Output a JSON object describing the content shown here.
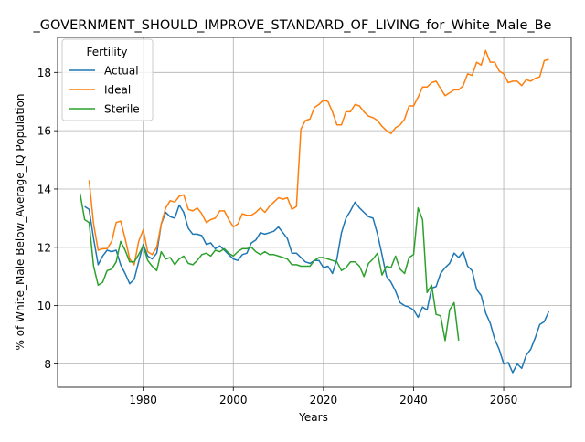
{
  "chart_data": {
    "type": "line",
    "title": "_GOVERNMENT_SHOULD_IMPROVE_STANDARD_OF_LIVING_for_White_Male_Be",
    "xlabel": "Years",
    "ylabel": "% of White_Male Below_Average_IQ Population",
    "xlim": [
      1961,
      2075
    ],
    "ylim": [
      7.2,
      19.2
    ],
    "x_ticks": [
      1980,
      2000,
      2020,
      2040,
      2060
    ],
    "y_ticks": [
      8,
      10,
      12,
      14,
      16,
      18
    ],
    "grid": true,
    "legend_title": "Fertility",
    "legend_position": "top-left",
    "series": [
      {
        "name": "Actual",
        "color": "#1f77b4",
        "points": [
          [
            1967,
            13.4
          ],
          [
            1968,
            13.3
          ],
          [
            1969,
            12.3
          ],
          [
            1970,
            11.4
          ],
          [
            1971,
            11.7
          ],
          [
            1972,
            11.9
          ],
          [
            1973,
            11.85
          ],
          [
            1974,
            11.9
          ],
          [
            1975,
            11.4
          ],
          [
            1976,
            11.1
          ],
          [
            1977,
            10.75
          ],
          [
            1978,
            10.9
          ],
          [
            1979,
            11.5
          ],
          [
            1980,
            12.1
          ],
          [
            1981,
            11.7
          ],
          [
            1982,
            11.6
          ],
          [
            1983,
            11.8
          ],
          [
            1984,
            12.8
          ],
          [
            1985,
            13.2
          ],
          [
            1986,
            13.05
          ],
          [
            1987,
            13.0
          ],
          [
            1988,
            13.45
          ],
          [
            1989,
            13.2
          ],
          [
            1990,
            12.65
          ],
          [
            1991,
            12.45
          ],
          [
            1992,
            12.45
          ],
          [
            1993,
            12.4
          ],
          [
            1994,
            12.1
          ],
          [
            1995,
            12.15
          ],
          [
            1996,
            11.95
          ],
          [
            1997,
            12.05
          ],
          [
            1998,
            11.9
          ],
          [
            1999,
            11.75
          ],
          [
            2000,
            11.6
          ],
          [
            2001,
            11.55
          ],
          [
            2002,
            11.75
          ],
          [
            2003,
            11.8
          ],
          [
            2004,
            12.15
          ],
          [
            2005,
            12.25
          ],
          [
            2006,
            12.5
          ],
          [
            2007,
            12.45
          ],
          [
            2008,
            12.5
          ],
          [
            2009,
            12.55
          ],
          [
            2010,
            12.7
          ],
          [
            2011,
            12.5
          ],
          [
            2012,
            12.3
          ],
          [
            2013,
            11.8
          ],
          [
            2014,
            11.8
          ],
          [
            2015,
            11.65
          ],
          [
            2016,
            11.5
          ],
          [
            2017,
            11.45
          ],
          [
            2018,
            11.55
          ],
          [
            2019,
            11.55
          ],
          [
            2020,
            11.3
          ],
          [
            2021,
            11.35
          ],
          [
            2022,
            11.1
          ],
          [
            2023,
            11.6
          ],
          [
            2024,
            12.5
          ],
          [
            2025,
            13.0
          ],
          [
            2026,
            13.25
          ],
          [
            2027,
            13.55
          ],
          [
            2028,
            13.35
          ],
          [
            2029,
            13.2
          ],
          [
            2030,
            13.05
          ],
          [
            2031,
            13.0
          ],
          [
            2032,
            12.45
          ],
          [
            2033,
            11.75
          ],
          [
            2034,
            11.0
          ],
          [
            2035,
            10.8
          ],
          [
            2036,
            10.5
          ],
          [
            2037,
            10.1
          ],
          [
            2038,
            10.0
          ],
          [
            2039,
            9.95
          ],
          [
            2040,
            9.85
          ],
          [
            2041,
            9.6
          ],
          [
            2042,
            9.95
          ],
          [
            2043,
            9.85
          ],
          [
            2044,
            10.6
          ],
          [
            2045,
            10.65
          ],
          [
            2046,
            11.1
          ],
          [
            2047,
            11.3
          ],
          [
            2048,
            11.45
          ],
          [
            2049,
            11.8
          ],
          [
            2050,
            11.65
          ],
          [
            2051,
            11.85
          ],
          [
            2052,
            11.35
          ],
          [
            2053,
            11.2
          ],
          [
            2054,
            10.55
          ],
          [
            2055,
            10.35
          ],
          [
            2056,
            9.75
          ],
          [
            2057,
            9.4
          ],
          [
            2058,
            8.85
          ],
          [
            2059,
            8.5
          ],
          [
            2060,
            8.0
          ],
          [
            2061,
            8.05
          ],
          [
            2062,
            7.7
          ],
          [
            2063,
            8.0
          ],
          [
            2064,
            7.85
          ],
          [
            2065,
            8.3
          ],
          [
            2066,
            8.5
          ],
          [
            2067,
            8.9
          ],
          [
            2068,
            9.35
          ],
          [
            2069,
            9.45
          ],
          [
            2070,
            9.8
          ]
        ]
      },
      {
        "name": "Ideal",
        "color": "#ff7f0e",
        "points": [
          [
            1968,
            14.3
          ],
          [
            1969,
            12.8
          ],
          [
            1970,
            11.9
          ],
          [
            1971,
            11.95
          ],
          [
            1972,
            11.95
          ],
          [
            1973,
            12.2
          ],
          [
            1974,
            12.85
          ],
          [
            1975,
            12.9
          ],
          [
            1976,
            12.3
          ],
          [
            1977,
            11.6
          ],
          [
            1978,
            11.4
          ],
          [
            1979,
            12.2
          ],
          [
            1980,
            12.6
          ],
          [
            1981,
            11.85
          ],
          [
            1982,
            11.75
          ],
          [
            1983,
            12.0
          ],
          [
            1984,
            12.8
          ],
          [
            1985,
            13.35
          ],
          [
            1986,
            13.6
          ],
          [
            1987,
            13.55
          ],
          [
            1988,
            13.75
          ],
          [
            1989,
            13.8
          ],
          [
            1990,
            13.3
          ],
          [
            1991,
            13.25
          ],
          [
            1992,
            13.35
          ],
          [
            1993,
            13.15
          ],
          [
            1994,
            12.85
          ],
          [
            1995,
            12.95
          ],
          [
            1996,
            13.0
          ],
          [
            1997,
            13.25
          ],
          [
            1998,
            13.25
          ],
          [
            1999,
            12.95
          ],
          [
            2000,
            12.7
          ],
          [
            2001,
            12.8
          ],
          [
            2002,
            13.15
          ],
          [
            2003,
            13.1
          ],
          [
            2004,
            13.1
          ],
          [
            2005,
            13.2
          ],
          [
            2006,
            13.35
          ],
          [
            2007,
            13.2
          ],
          [
            2008,
            13.4
          ],
          [
            2009,
            13.55
          ],
          [
            2010,
            13.7
          ],
          [
            2011,
            13.65
          ],
          [
            2012,
            13.7
          ],
          [
            2013,
            13.3
          ],
          [
            2014,
            13.4
          ],
          [
            2015,
            16.05
          ],
          [
            2016,
            16.35
          ],
          [
            2017,
            16.4
          ],
          [
            2018,
            16.8
          ],
          [
            2019,
            16.9
          ],
          [
            2020,
            17.05
          ],
          [
            2021,
            17.0
          ],
          [
            2022,
            16.65
          ],
          [
            2023,
            16.2
          ],
          [
            2024,
            16.2
          ],
          [
            2025,
            16.65
          ],
          [
            2026,
            16.65
          ],
          [
            2027,
            16.9
          ],
          [
            2028,
            16.85
          ],
          [
            2029,
            16.65
          ],
          [
            2030,
            16.5
          ],
          [
            2031,
            16.45
          ],
          [
            2032,
            16.35
          ],
          [
            2033,
            16.15
          ],
          [
            2034,
            16.0
          ],
          [
            2035,
            15.9
          ],
          [
            2036,
            16.1
          ],
          [
            2037,
            16.2
          ],
          [
            2038,
            16.4
          ],
          [
            2039,
            16.85
          ],
          [
            2040,
            16.85
          ],
          [
            2041,
            17.15
          ],
          [
            2042,
            17.5
          ],
          [
            2043,
            17.5
          ],
          [
            2044,
            17.65
          ],
          [
            2045,
            17.7
          ],
          [
            2046,
            17.45
          ],
          [
            2047,
            17.2
          ],
          [
            2048,
            17.3
          ],
          [
            2049,
            17.4
          ],
          [
            2050,
            17.4
          ],
          [
            2051,
            17.55
          ],
          [
            2052,
            17.95
          ],
          [
            2053,
            17.9
          ],
          [
            2054,
            18.35
          ],
          [
            2055,
            18.25
          ],
          [
            2056,
            18.75
          ],
          [
            2057,
            18.35
          ],
          [
            2058,
            18.35
          ],
          [
            2059,
            18.05
          ],
          [
            2060,
            17.95
          ],
          [
            2061,
            17.65
          ],
          [
            2062,
            17.7
          ],
          [
            2063,
            17.7
          ],
          [
            2064,
            17.55
          ],
          [
            2065,
            17.75
          ],
          [
            2066,
            17.7
          ],
          [
            2067,
            17.8
          ],
          [
            2068,
            17.85
          ],
          [
            2069,
            18.4
          ],
          [
            2070,
            18.45
          ]
        ]
      },
      {
        "name": "Sterile",
        "color": "#2ca02c",
        "points": [
          [
            1966,
            13.85
          ],
          [
            1967,
            12.95
          ],
          [
            1968,
            12.85
          ],
          [
            1969,
            11.35
          ],
          [
            1970,
            10.7
          ],
          [
            1971,
            10.8
          ],
          [
            1972,
            11.2
          ],
          [
            1973,
            11.25
          ],
          [
            1974,
            11.5
          ],
          [
            1975,
            12.2
          ],
          [
            1976,
            11.9
          ],
          [
            1977,
            11.5
          ],
          [
            1978,
            11.5
          ],
          [
            1979,
            11.75
          ],
          [
            1980,
            12.05
          ],
          [
            1981,
            11.55
          ],
          [
            1982,
            11.35
          ],
          [
            1983,
            11.2
          ],
          [
            1984,
            11.85
          ],
          [
            1985,
            11.6
          ],
          [
            1986,
            11.65
          ],
          [
            1987,
            11.4
          ],
          [
            1988,
            11.6
          ],
          [
            1989,
            11.7
          ],
          [
            1990,
            11.45
          ],
          [
            1991,
            11.4
          ],
          [
            1992,
            11.55
          ],
          [
            1993,
            11.75
          ],
          [
            1994,
            11.8
          ],
          [
            1995,
            11.7
          ],
          [
            1996,
            11.9
          ],
          [
            1997,
            11.85
          ],
          [
            1998,
            11.95
          ],
          [
            1999,
            11.8
          ],
          [
            2000,
            11.7
          ],
          [
            2001,
            11.85
          ],
          [
            2002,
            11.95
          ],
          [
            2003,
            11.95
          ],
          [
            2004,
            12.0
          ],
          [
            2005,
            11.85
          ],
          [
            2006,
            11.75
          ],
          [
            2007,
            11.85
          ],
          [
            2008,
            11.75
          ],
          [
            2009,
            11.75
          ],
          [
            2010,
            11.7
          ],
          [
            2011,
            11.65
          ],
          [
            2012,
            11.6
          ],
          [
            2013,
            11.4
          ],
          [
            2014,
            11.4
          ],
          [
            2015,
            11.35
          ],
          [
            2016,
            11.35
          ],
          [
            2017,
            11.35
          ],
          [
            2018,
            11.55
          ],
          [
            2019,
            11.65
          ],
          [
            2020,
            11.65
          ],
          [
            2021,
            11.6
          ],
          [
            2022,
            11.55
          ],
          [
            2023,
            11.5
          ],
          [
            2024,
            11.2
          ],
          [
            2025,
            11.3
          ],
          [
            2026,
            11.5
          ],
          [
            2027,
            11.5
          ],
          [
            2028,
            11.35
          ],
          [
            2029,
            11.0
          ],
          [
            2030,
            11.45
          ],
          [
            2031,
            11.6
          ],
          [
            2032,
            11.8
          ],
          [
            2033,
            11.05
          ],
          [
            2034,
            11.35
          ],
          [
            2035,
            11.3
          ],
          [
            2036,
            11.7
          ],
          [
            2037,
            11.25
          ],
          [
            2038,
            11.1
          ],
          [
            2039,
            11.65
          ],
          [
            2040,
            11.75
          ],
          [
            2041,
            13.35
          ],
          [
            2042,
            12.95
          ],
          [
            2043,
            10.45
          ],
          [
            2044,
            10.7
          ],
          [
            2045,
            9.7
          ],
          [
            2046,
            9.65
          ],
          [
            2047,
            8.8
          ],
          [
            2048,
            9.85
          ],
          [
            2049,
            10.1
          ],
          [
            2050,
            8.8
          ]
        ]
      }
    ]
  }
}
